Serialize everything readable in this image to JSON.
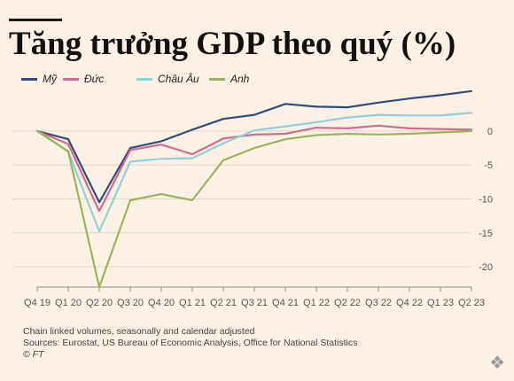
{
  "title": "Tăng trưởng GDP theo quý (%)",
  "chart_data": {
    "type": "line",
    "categories": [
      "Q4 19",
      "Q1 20",
      "Q2 20",
      "Q3 20",
      "Q4 20",
      "Q1 21",
      "Q2 21",
      "Q3 21",
      "Q4 21",
      "Q1 22",
      "Q2 22",
      "Q3 22",
      "Q4 22",
      "Q1 23",
      "Q2 23"
    ],
    "ylim": [
      -23,
      6
    ],
    "yticks": [
      0,
      -5,
      -10,
      -15,
      -20
    ],
    "grid": true,
    "legend_position": "top",
    "series": [
      {
        "name": "Mỹ",
        "color": "#2f4d7e",
        "values": [
          0,
          -1.2,
          -10.5,
          -2.5,
          -1.5,
          0.2,
          1.8,
          2.4,
          4.0,
          3.6,
          3.5,
          4.2,
          4.8,
          5.3,
          5.9
        ]
      },
      {
        "name": "Đức",
        "color": "#cc6f8e",
        "values": [
          0,
          -1.9,
          -11.8,
          -2.8,
          -2.0,
          -3.4,
          -1.1,
          -0.5,
          -0.4,
          0.5,
          0.4,
          0.8,
          0.4,
          0.3,
          0.2
        ]
      },
      {
        "name": "Châu Âu",
        "color": "#8fd0dc",
        "values": [
          0,
          -3.0,
          -14.8,
          -4.5,
          -4.1,
          -4.0,
          -1.8,
          0.1,
          0.7,
          1.3,
          2.0,
          2.4,
          2.3,
          2.3,
          2.7
        ]
      },
      {
        "name": "Anh",
        "color": "#96b65c",
        "values": [
          0,
          -3.0,
          -23.0,
          -10.2,
          -9.3,
          -10.2,
          -4.3,
          -2.5,
          -1.2,
          -0.6,
          -0.4,
          -0.5,
          -0.4,
          -0.2,
          0.0
        ]
      }
    ]
  },
  "footnote": "Chain linked volumes, seasonally and calendar adjusted",
  "sources": "Sources: Eurostat, US Bureau of Economic Analysis, Office for National Statistics",
  "credit": "© FT",
  "corner_icon": "tag-icon"
}
